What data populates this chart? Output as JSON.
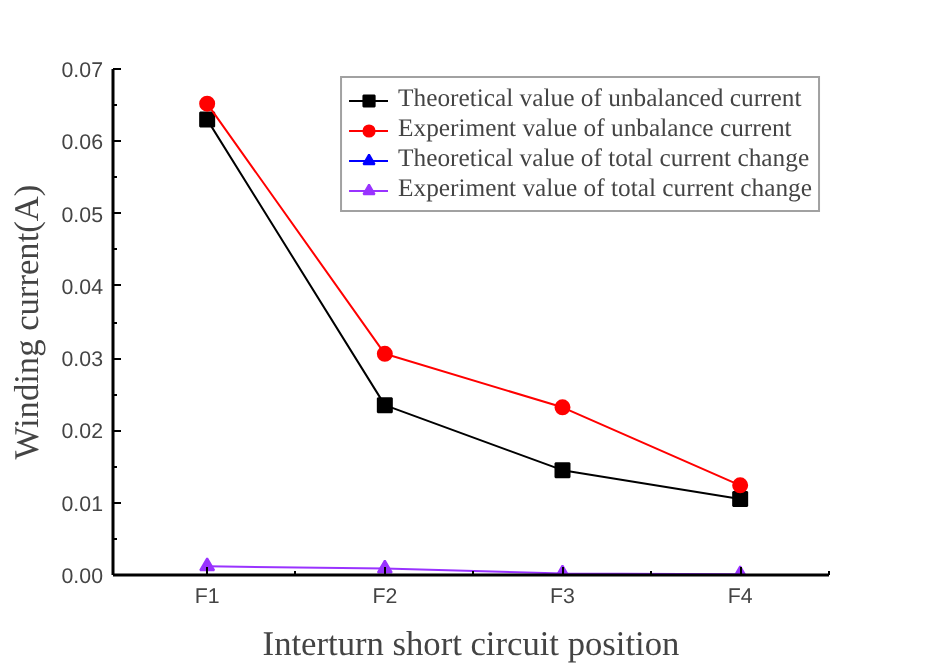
{
  "chart_data": {
    "type": "line",
    "xlabel": "Interturn short circuit position",
    "ylabel": "Winding current(A)",
    "categories": [
      "F1",
      "F2",
      "F3",
      "F4"
    ],
    "series": [
      {
        "name": "Theoretical value of unbalanced current",
        "color": "#000000",
        "marker": "square",
        "values": [
          0.063,
          0.0235,
          0.0145,
          0.0105
        ]
      },
      {
        "name": "Experiment value of unbalance current",
        "color": "#ff0000",
        "marker": "circle",
        "values": [
          0.0652,
          0.0306,
          0.0232,
          0.0124
        ]
      },
      {
        "name": "Theoretical value of total current change",
        "color": "#0000ff",
        "marker": "triangle",
        "values": [
          null,
          null,
          null,
          null
        ]
      },
      {
        "name": "Experiment value of total current change",
        "color": "#9933ff",
        "marker": "triangle",
        "values": [
          0.0012,
          0.0009,
          0.0002,
          0.0001
        ]
      }
    ],
    "ylim": [
      0,
      0.07
    ],
    "yticks": [
      {
        "value": 0,
        "label": "0.00"
      },
      {
        "value": 0.01,
        "label": "0.01"
      },
      {
        "value": 0.02,
        "label": "0.02"
      },
      {
        "value": 0.03,
        "label": "0.03"
      },
      {
        "value": 0.04,
        "label": "0.04"
      },
      {
        "value": 0.05,
        "label": "0.05"
      },
      {
        "value": 0.06,
        "label": "0.06"
      },
      {
        "value": 0.07,
        "label": "0.07"
      }
    ],
    "grid": false,
    "legend": "top right",
    "line_style": "solid"
  }
}
